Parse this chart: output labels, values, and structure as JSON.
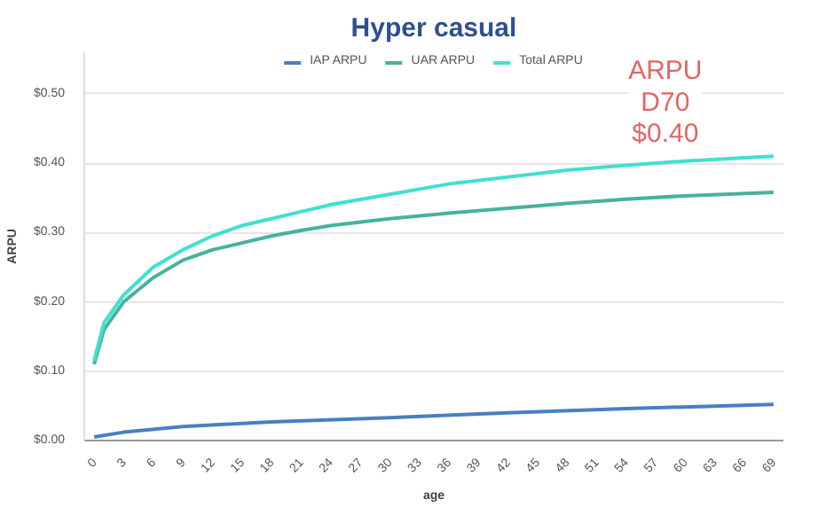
{
  "chart_data": {
    "type": "line",
    "title": "Hyper casual",
    "xlabel": "age",
    "ylabel": "ARPU",
    "annotations": [
      "ARPU\nD70\n$0.40"
    ],
    "series": [
      {
        "name": "IAP ARPU",
        "color": "#4a7fc1",
        "x": [
          0,
          3,
          9,
          18,
          30,
          42,
          54,
          69
        ],
        "values": [
          0.005,
          0.012,
          0.02,
          0.027,
          0.033,
          0.04,
          0.046,
          0.052
        ]
      },
      {
        "name": "UAR ARPU",
        "color": "#45b39d",
        "x": [
          0,
          1,
          3,
          6,
          9,
          12,
          15,
          18,
          21,
          24,
          30,
          36,
          42,
          48,
          54,
          60,
          69
        ],
        "values": [
          0.11,
          0.16,
          0.2,
          0.235,
          0.26,
          0.275,
          0.285,
          0.295,
          0.303,
          0.31,
          0.32,
          0.328,
          0.335,
          0.342,
          0.348,
          0.353,
          0.358
        ]
      },
      {
        "name": "Total ARPU",
        "color": "#40e0d0",
        "x": [
          0,
          1,
          3,
          6,
          9,
          12,
          15,
          18,
          21,
          24,
          30,
          36,
          42,
          48,
          54,
          60,
          66,
          69
        ],
        "values": [
          0.115,
          0.17,
          0.21,
          0.25,
          0.275,
          0.295,
          0.31,
          0.32,
          0.33,
          0.34,
          0.355,
          0.37,
          0.38,
          0.39,
          0.397,
          0.403,
          0.408,
          0.41
        ]
      }
    ],
    "xlim": [
      -1,
      70
    ],
    "xticks": [
      0,
      3,
      6,
      9,
      12,
      15,
      18,
      21,
      24,
      27,
      30,
      33,
      36,
      39,
      42,
      45,
      48,
      51,
      54,
      57,
      60,
      63,
      66,
      69
    ],
    "ylim": [
      0,
      0.56
    ],
    "yticks": [
      {
        "value": 0,
        "label": "$0.00"
      },
      {
        "value": 0.1,
        "label": "$0.10"
      },
      {
        "value": 0.2,
        "label": "$0.20"
      },
      {
        "value": 0.3,
        "label": "$0.30"
      },
      {
        "value": 0.4,
        "label": "$0.40"
      },
      {
        "value": 0.5,
        "label": "$0.50"
      }
    ],
    "grid": "y",
    "legend": "top",
    "marker": "none",
    "line_style": "solid"
  }
}
